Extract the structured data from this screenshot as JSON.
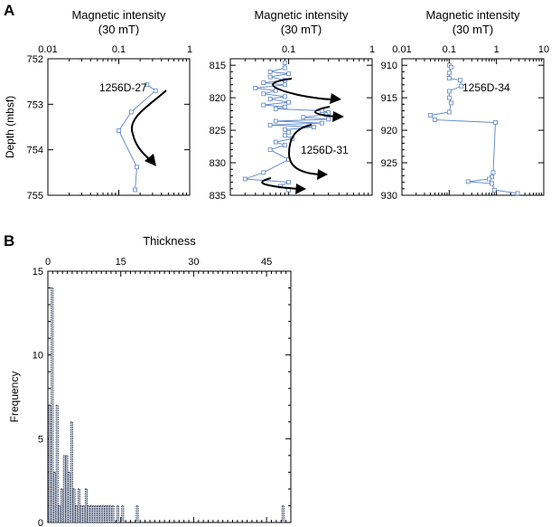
{
  "panel_labels": [
    "A",
    "B"
  ],
  "colors": {
    "series": "#5b84c4",
    "axis": "#000000",
    "bar_fill": "#c4cad8"
  },
  "chart_data": [
    {
      "type": "line",
      "title": "Magnetic intensity\n(30 mT)",
      "ylabel": "Depth (mbsf)",
      "xscale": "log",
      "xlim": [
        0.01,
        1
      ],
      "ylim": [
        752,
        755
      ],
      "y_inverted": true,
      "xticks": [
        "0.01",
        "0.1",
        "1"
      ],
      "yticks": [
        "752",
        "753",
        "754",
        "755"
      ],
      "annotation": "1256D-27",
      "x": [
        0.25,
        0.33,
        0.15,
        0.1,
        0.18,
        0.17
      ],
      "y": [
        752.57,
        752.7,
        753.17,
        753.58,
        754.38,
        754.88
      ]
    },
    {
      "type": "line",
      "title": "Magnetic intensity\n(30 mT)",
      "xscale": "log",
      "xlim": [
        0.02,
        1
      ],
      "ylim": [
        814,
        835
      ],
      "y_inverted": true,
      "xticks": [
        "0.1",
        "1"
      ],
      "yticks": [
        "815",
        "820",
        "825",
        "830",
        "835"
      ],
      "annotation": "1256D-31",
      "x": [
        0.09,
        0.09,
        0.06,
        0.1,
        0.06,
        0.09,
        0.05,
        0.09,
        0.04,
        0.07,
        0.05,
        0.09,
        0.06,
        0.1,
        0.05,
        0.09,
        0.07,
        0.25,
        0.3,
        0.28,
        0.15,
        0.3,
        0.07,
        0.25,
        0.06,
        0.2,
        0.09,
        0.1,
        0.09,
        0.11,
        0.07,
        0.09,
        0.06,
        0.1,
        0.05,
        0.03,
        0.1,
        0.08,
        0.1
      ],
      "y": [
        814.6,
        815.4,
        816.0,
        816.3,
        816.8,
        817.3,
        817.7,
        818.0,
        818.5,
        818.9,
        819.4,
        819.8,
        820.2,
        820.7,
        821.1,
        821.4,
        821.7,
        822.0,
        822.3,
        822.6,
        823.0,
        823.3,
        823.6,
        823.9,
        824.2,
        824.5,
        824.9,
        825.3,
        825.8,
        826.3,
        826.8,
        827.3,
        828.0,
        829.5,
        831.5,
        832.5,
        833.0,
        833.6,
        834.2
      ]
    },
    {
      "type": "line",
      "title": "Magnetic intensity\n(30 mT)",
      "xscale": "log",
      "xlim": [
        0.01,
        10
      ],
      "ylim": [
        909,
        930
      ],
      "y_inverted": true,
      "xticks": [
        "0.01",
        "0.1",
        "1",
        "10"
      ],
      "yticks": [
        "910",
        "915",
        "920",
        "925",
        "930"
      ],
      "annotation": "1256D-34",
      "x": [
        0.1,
        0.11,
        0.1,
        0.1,
        0.17,
        0.18,
        0.1,
        0.1,
        0.11,
        0.1,
        0.04,
        0.05,
        0.95,
        0.85,
        0.8,
        0.7,
        0.25,
        0.8,
        0.9,
        2.8
      ],
      "y": [
        910.0,
        910.3,
        911.2,
        912.0,
        912.3,
        913.2,
        914.0,
        915.0,
        915.8,
        917.2,
        917.7,
        918.4,
        918.8,
        926.5,
        927.2,
        927.5,
        927.9,
        928.2,
        929.2,
        929.7
      ]
    },
    {
      "type": "bar",
      "xlabel": "Thickness",
      "ylabel": "Frequency",
      "xlim": [
        0,
        50
      ],
      "ylim": [
        0,
        15
      ],
      "xticks": [
        "0",
        "15",
        "30",
        "45"
      ],
      "yticks": [
        "0",
        "5",
        "10",
        "15"
      ],
      "x": [
        0.0,
        0.5,
        1.0,
        1.5,
        2.0,
        2.5,
        3.0,
        3.5,
        4.0,
        4.5,
        5.0,
        5.5,
        6.0,
        6.5,
        7.0,
        7.5,
        8.0,
        8.5,
        9.0,
        9.5,
        10.0,
        10.5,
        11.0,
        11.5,
        12.0,
        12.5,
        13.0,
        14.0,
        15.0,
        18.0,
        48.0
      ],
      "values": [
        7,
        14,
        3,
        7,
        1,
        2,
        4,
        4,
        3,
        6,
        2,
        1,
        2,
        1,
        1,
        2,
        1,
        1,
        1,
        1,
        1,
        1,
        1,
        1,
        1,
        1,
        1,
        1,
        1,
        1,
        1
      ]
    }
  ]
}
